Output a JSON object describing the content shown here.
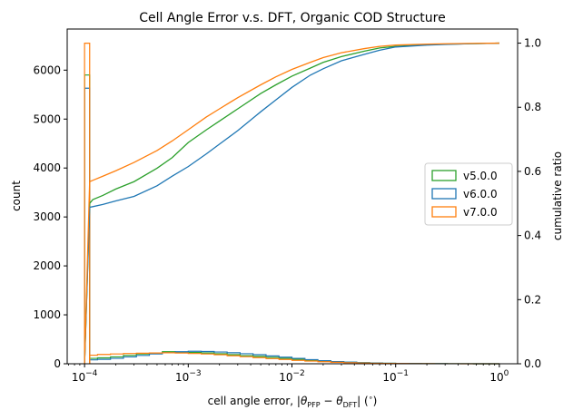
{
  "chart_data": {
    "type": "histogram-cumulative",
    "title": "Cell Angle Error v.s. DFT, Organic COD Structure",
    "xlabel": "cell angle error, |θ_PFP − θ_DFT| (°)",
    "ylabel": "count",
    "y2label": "cumulative ratio",
    "xscale": "log",
    "xlim": [
      6.8e-05,
      1.5
    ],
    "ylim": [
      0,
      6840
    ],
    "y2lim": [
      0,
      1.044
    ],
    "x_ticks": [
      {
        "value": 0.0001,
        "base": "10",
        "exp": "−4"
      },
      {
        "value": 0.001,
        "base": "10",
        "exp": "−3"
      },
      {
        "value": 0.01,
        "base": "10",
        "exp": "−2"
      },
      {
        "value": 0.1,
        "base": "10",
        "exp": "−1"
      },
      {
        "value": 1,
        "base": "10",
        "exp": "0"
      }
    ],
    "y_ticks": [
      0,
      1000,
      2000,
      3000,
      4000,
      5000,
      6000
    ],
    "y2_ticks": [
      "0.0",
      "0.2",
      "0.4",
      "0.6",
      "0.8",
      "1.0"
    ],
    "y2_tick_values": [
      0,
      0.2,
      0.4,
      0.6,
      0.8,
      1.0
    ],
    "legend": {
      "position": "center-right",
      "entries": [
        "v5.0.0",
        "v6.0.0",
        "v7.0.0"
      ]
    },
    "bin_edges_log10": [
      -4.0,
      -3.875,
      -3.75,
      -3.625,
      -3.5,
      -3.375,
      -3.25,
      -3.125,
      -3.0,
      -2.875,
      -2.75,
      -2.625,
      -2.5,
      -2.375,
      -2.25,
      -2.125,
      -2.0,
      -1.875,
      -1.75,
      -1.625,
      -1.5,
      -1.375,
      -1.25,
      -1.125,
      -1.0,
      -0.875,
      -0.75,
      -0.625,
      -0.5,
      -0.375,
      -0.25,
      -0.125,
      0.0
    ],
    "series": [
      {
        "name": "v5.0.0",
        "color": "#2ca02c",
        "hist_first_bin": {
          "x0": 0.0001,
          "x1": 0.000112,
          "count": 5900
        },
        "hist_counts": [
          110,
          120,
          140,
          170,
          200,
          220,
          245,
          240,
          230,
          220,
          205,
          185,
          165,
          150,
          130,
          110,
          90,
          70,
          55,
          40,
          30,
          22,
          15,
          10,
          7,
          5,
          3,
          2,
          1,
          1,
          0,
          0
        ],
        "cumulative": [
          [
            0.0001,
            0.0
          ],
          [
            0.000112,
            0.5
          ],
          [
            0.00012,
            0.512
          ],
          [
            0.00015,
            0.525
          ],
          [
            0.0002,
            0.545
          ],
          [
            0.0003,
            0.568
          ],
          [
            0.0005,
            0.61
          ],
          [
            0.0007,
            0.643
          ],
          [
            0.001,
            0.69
          ],
          [
            0.0015,
            0.73
          ],
          [
            0.002,
            0.757
          ],
          [
            0.003,
            0.795
          ],
          [
            0.005,
            0.843
          ],
          [
            0.007,
            0.87
          ],
          [
            0.01,
            0.897
          ],
          [
            0.015,
            0.922
          ],
          [
            0.02,
            0.94
          ],
          [
            0.03,
            0.958
          ],
          [
            0.05,
            0.975
          ],
          [
            0.07,
            0.985
          ],
          [
            0.1,
            0.99
          ],
          [
            0.2,
            0.995
          ],
          [
            0.3,
            0.997
          ],
          [
            0.5,
            0.998
          ],
          [
            1.0,
            1.0
          ]
        ]
      },
      {
        "name": "v6.0.0",
        "color": "#1f77b4",
        "hist_first_bin": {
          "x0": 0.0001,
          "x1": 0.000112,
          "count": 5630
        },
        "hist_counts": [
          80,
          90,
          110,
          140,
          170,
          200,
          225,
          245,
          255,
          250,
          240,
          225,
          205,
          185,
          160,
          135,
          110,
          85,
          62,
          45,
          32,
          22,
          15,
          10,
          7,
          5,
          3,
          2,
          1,
          1,
          0,
          0
        ],
        "cumulative": [
          [
            0.0001,
            0.0
          ],
          [
            0.000112,
            0.488
          ],
          [
            0.00012,
            0.49
          ],
          [
            0.00015,
            0.497
          ],
          [
            0.0002,
            0.508
          ],
          [
            0.0003,
            0.522
          ],
          [
            0.0005,
            0.555
          ],
          [
            0.0007,
            0.585
          ],
          [
            0.001,
            0.615
          ],
          [
            0.0015,
            0.655
          ],
          [
            0.002,
            0.685
          ],
          [
            0.003,
            0.727
          ],
          [
            0.005,
            0.786
          ],
          [
            0.007,
            0.823
          ],
          [
            0.01,
            0.862
          ],
          [
            0.015,
            0.9
          ],
          [
            0.02,
            0.92
          ],
          [
            0.03,
            0.945
          ],
          [
            0.05,
            0.965
          ],
          [
            0.07,
            0.978
          ],
          [
            0.1,
            0.988
          ],
          [
            0.2,
            0.994
          ],
          [
            0.3,
            0.996
          ],
          [
            0.5,
            0.998
          ],
          [
            1.0,
            1.0
          ]
        ]
      },
      {
        "name": "v7.0.0",
        "color": "#ff7f0e",
        "hist_first_bin": {
          "x0": 0.0001,
          "x1": 0.000112,
          "count": 6550
        },
        "hist_counts": [
          175,
          190,
          200,
          210,
          215,
          220,
          225,
          220,
          210,
          200,
          185,
          165,
          145,
          125,
          105,
          88,
          70,
          55,
          42,
          30,
          22,
          15,
          10,
          7,
          5,
          3,
          2,
          1,
          1,
          0,
          0,
          0
        ],
        "cumulative": [
          [
            0.0001,
            0.0
          ],
          [
            0.000112,
            0.568
          ],
          [
            0.00012,
            0.572
          ],
          [
            0.00015,
            0.585
          ],
          [
            0.0002,
            0.602
          ],
          [
            0.0003,
            0.628
          ],
          [
            0.0005,
            0.665
          ],
          [
            0.0007,
            0.695
          ],
          [
            0.001,
            0.73
          ],
          [
            0.0015,
            0.77
          ],
          [
            0.002,
            0.795
          ],
          [
            0.003,
            0.83
          ],
          [
            0.005,
            0.87
          ],
          [
            0.007,
            0.895
          ],
          [
            0.01,
            0.918
          ],
          [
            0.015,
            0.94
          ],
          [
            0.02,
            0.955
          ],
          [
            0.03,
            0.97
          ],
          [
            0.05,
            0.983
          ],
          [
            0.07,
            0.99
          ],
          [
            0.1,
            0.994
          ],
          [
            0.2,
            0.997
          ],
          [
            0.3,
            0.998
          ],
          [
            0.5,
            0.999
          ],
          [
            1.0,
            1.0
          ]
        ]
      }
    ]
  }
}
